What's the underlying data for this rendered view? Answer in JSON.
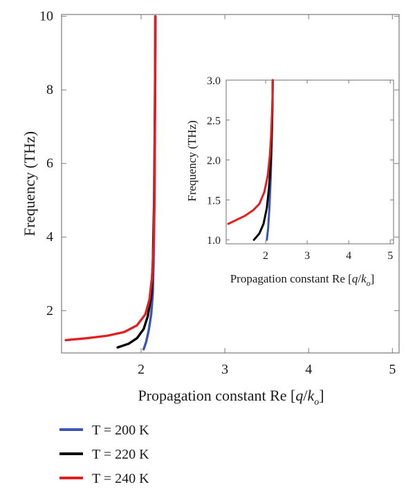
{
  "chart_data": [
    {
      "type": "line",
      "xlabel": "Propagation constant Re [q/ko]",
      "ylabel": "Frequency (THz)",
      "xlim": [
        1.05,
        5.08
      ],
      "ylim": [
        0.85,
        10.05
      ],
      "xticks": [
        2,
        3,
        4,
        5
      ],
      "yticks": [
        2,
        4,
        6,
        8,
        10
      ],
      "xlabel_parts": {
        "prefix": "Propagation constant Re [",
        "q": "q",
        "slash": "/",
        "k": "k",
        "sub": "o",
        "suffix": "]"
      },
      "series": [
        {
          "name": "T = 200 K",
          "color": "#3b55b5",
          "x": [
            2.03,
            2.06,
            2.09,
            2.12,
            2.14,
            2.15,
            2.16,
            2.165,
            2.17,
            2.17
          ],
          "y": [
            0.95,
            1.15,
            1.45,
            1.9,
            2.5,
            3.5,
            5.0,
            7.0,
            9.0,
            10.0
          ]
        },
        {
          "name": "T = 220 K",
          "color": "#000000",
          "x": [
            1.72,
            1.85,
            1.95,
            2.03,
            2.08,
            2.12,
            2.14,
            2.155,
            2.165,
            2.17
          ],
          "y": [
            1.0,
            1.1,
            1.25,
            1.5,
            1.85,
            2.4,
            3.3,
            5.0,
            7.5,
            10.0
          ]
        },
        {
          "name": "T = 240 K",
          "color": "#e02020",
          "x": [
            1.1,
            1.35,
            1.6,
            1.8,
            1.95,
            2.05,
            2.1,
            2.13,
            2.15,
            2.16,
            2.165,
            2.17
          ],
          "y": [
            1.2,
            1.25,
            1.32,
            1.42,
            1.6,
            1.9,
            2.3,
            2.9,
            3.8,
            5.5,
            7.5,
            10.0
          ]
        }
      ]
    },
    {
      "type": "line",
      "xlabel": "Propagation constant Re [q/ko]",
      "ylabel": "Frequency (THz)",
      "xlim": [
        1.05,
        5.08
      ],
      "ylim": [
        0.95,
        3.0
      ],
      "xticks": [
        2,
        3,
        4,
        5
      ],
      "yticks": [
        1.0,
        1.5,
        2.0,
        2.5,
        3.0
      ],
      "ytick_labels": [
        "1.0",
        "1.5",
        "2.0",
        "2.5",
        "3.0"
      ],
      "xlabel_parts": {
        "prefix": "Propagation constant Re [",
        "q": "q",
        "slash": "/",
        "k": "k",
        "sub": "o",
        "suffix": "]"
      },
      "series": [
        {
          "name": "T = 200 K",
          "color": "#3b55b5",
          "x": [
            2.03,
            2.06,
            2.09,
            2.12,
            2.14,
            2.155,
            2.165,
            2.17
          ],
          "y": [
            1.0,
            1.15,
            1.4,
            1.75,
            2.1,
            2.45,
            2.75,
            3.0
          ]
        },
        {
          "name": "T = 220 K",
          "color": "#000000",
          "x": [
            1.72,
            1.85,
            1.95,
            2.03,
            2.08,
            2.12,
            2.15,
            2.165,
            2.17
          ],
          "y": [
            1.0,
            1.08,
            1.2,
            1.4,
            1.65,
            1.95,
            2.35,
            2.7,
            3.0
          ]
        },
        {
          "name": "T = 240 K",
          "color": "#e02020",
          "x": [
            1.1,
            1.3,
            1.5,
            1.7,
            1.85,
            1.97,
            2.05,
            2.1,
            2.13,
            2.15,
            2.165,
            2.17
          ],
          "y": [
            1.2,
            1.25,
            1.3,
            1.37,
            1.45,
            1.6,
            1.8,
            2.05,
            2.3,
            2.55,
            2.8,
            3.0
          ]
        }
      ]
    }
  ],
  "legend": [
    {
      "label": "T = 200 K",
      "color": "#3b55b5"
    },
    {
      "label": "T = 220 K",
      "color": "#000000"
    },
    {
      "label": "T = 240 K",
      "color": "#e02020"
    }
  ]
}
